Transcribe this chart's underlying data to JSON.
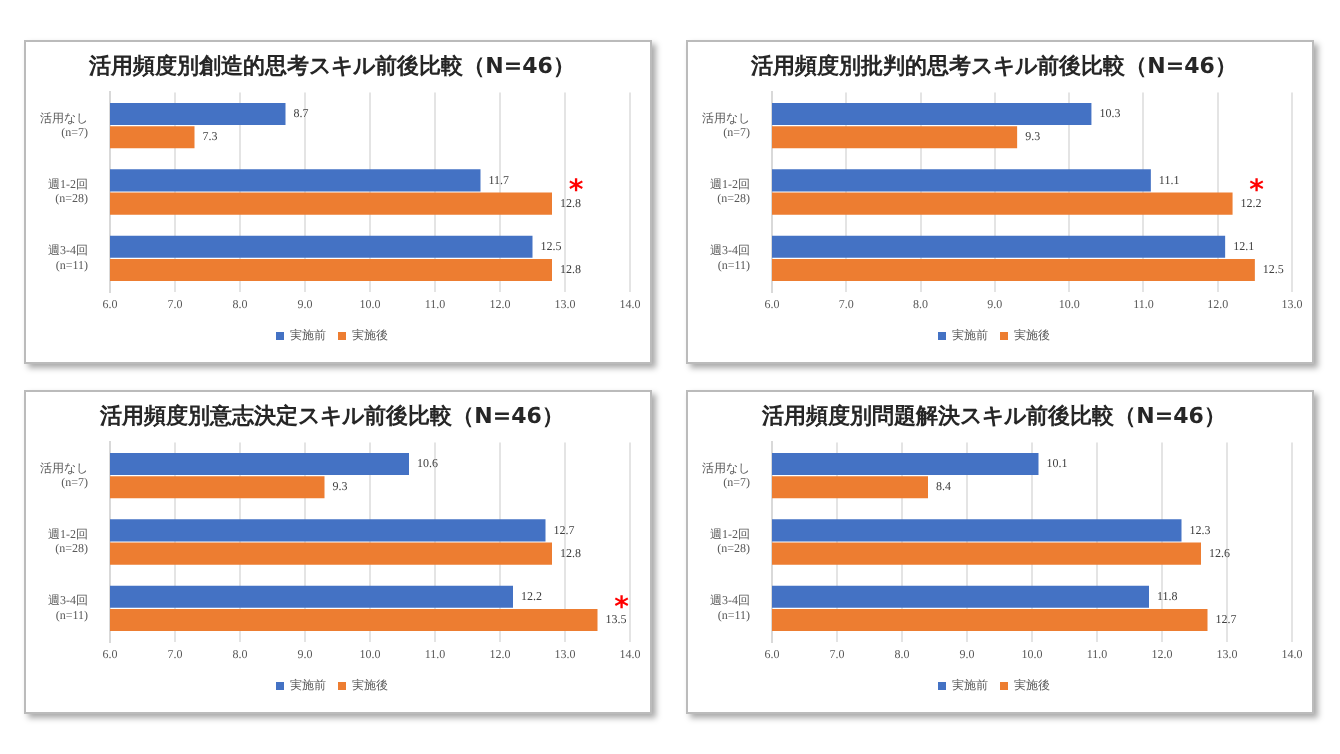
{
  "chart_data": [
    {
      "type": "bar",
      "orientation": "horizontal",
      "title": "活用頻度別創造的思考スキル前後比較（N=46）",
      "categories": [
        "活用なし\n(n=7)",
        "週1-2回\n(n=28)",
        "週3-4回\n(n=11)"
      ],
      "series": [
        {
          "name": "実施前",
          "color": "#4472c4",
          "values": [
            8.7,
            11.7,
            12.5
          ]
        },
        {
          "name": "実施後",
          "color": "#ed7d31",
          "values": [
            7.3,
            12.8,
            12.8
          ]
        }
      ],
      "xlim": [
        6,
        14
      ],
      "xticks": [
        {
          "value": 6,
          "label": "6.0"
        },
        {
          "value": 7,
          "label": "7.0"
        },
        {
          "value": 8,
          "label": "8.0"
        },
        {
          "value": 9,
          "label": "9.0"
        },
        {
          "value": 10,
          "label": "10.0"
        },
        {
          "value": 11,
          "label": "11.0"
        },
        {
          "value": 12,
          "label": "12.0"
        },
        {
          "value": 13,
          "label": "13.0"
        },
        {
          "value": 14,
          "label": "14.0"
        }
      ],
      "data_labels": true,
      "grid": "x",
      "legend": "bottom",
      "annotations": [
        {
          "text": "*",
          "x": 12.8,
          "y": "週1-2回\n(n=28)"
        }
      ]
    },
    {
      "type": "bar",
      "orientation": "horizontal",
      "title": "活用頻度別批判的思考スキル前後比較（N=46）",
      "categories": [
        "活用なし\n(n=7)",
        "週1-2回\n(n=28)",
        "週3-4回\n(n=11)"
      ],
      "series": [
        {
          "name": "実施前",
          "color": "#4472c4",
          "values": [
            10.3,
            11.1,
            12.1
          ]
        },
        {
          "name": "実施後",
          "color": "#ed7d31",
          "values": [
            9.3,
            12.2,
            12.5
          ]
        }
      ],
      "xlim": [
        6,
        13
      ],
      "xticks": [
        {
          "value": 6,
          "label": "6.0"
        },
        {
          "value": 7,
          "label": "7.0"
        },
        {
          "value": 8,
          "label": "8.0"
        },
        {
          "value": 9,
          "label": "9.0"
        },
        {
          "value": 10,
          "label": "10.0"
        },
        {
          "value": 11,
          "label": "11.0"
        },
        {
          "value": 12,
          "label": "12.0"
        },
        {
          "value": 13,
          "label": "13.0"
        }
      ],
      "data_labels": true,
      "grid": "x",
      "legend": "bottom",
      "annotations": [
        {
          "text": "*",
          "x": 12.2,
          "y": "週1-2回\n(n=28)"
        }
      ]
    },
    {
      "type": "bar",
      "orientation": "horizontal",
      "title": "活用頻度別意志決定スキル前後比較（N=46）",
      "categories": [
        "活用なし\n(n=7)",
        "週1-2回\n(n=28)",
        "週3-4回\n(n=11)"
      ],
      "series": [
        {
          "name": "実施前",
          "color": "#4472c4",
          "values": [
            10.6,
            12.7,
            12.2
          ]
        },
        {
          "name": "実施後",
          "color": "#ed7d31",
          "values": [
            9.3,
            12.8,
            13.5
          ]
        }
      ],
      "xlim": [
        6,
        14
      ],
      "xticks": [
        {
          "value": 6,
          "label": "6.0"
        },
        {
          "value": 7,
          "label": "7.0"
        },
        {
          "value": 8,
          "label": "8.0"
        },
        {
          "value": 9,
          "label": "9.0"
        },
        {
          "value": 10,
          "label": "10.0"
        },
        {
          "value": 11,
          "label": "11.0"
        },
        {
          "value": 12,
          "label": "12.0"
        },
        {
          "value": 13,
          "label": "13.0"
        },
        {
          "value": 14,
          "label": "14.0"
        }
      ],
      "data_labels": true,
      "grid": "x",
      "legend": "bottom",
      "annotations": [
        {
          "text": "*",
          "x": 13.5,
          "y": "週3-4回\n(n=11)"
        }
      ]
    },
    {
      "type": "bar",
      "orientation": "horizontal",
      "title": "活用頻度別問題解決スキル前後比較（N=46）",
      "categories": [
        "活用なし\n(n=7)",
        "週1-2回\n(n=28)",
        "週3-4回\n(n=11)"
      ],
      "series": [
        {
          "name": "実施前",
          "color": "#4472c4",
          "values": [
            10.1,
            12.3,
            11.8
          ]
        },
        {
          "name": "実施後",
          "color": "#ed7d31",
          "values": [
            8.4,
            12.6,
            12.7
          ]
        }
      ],
      "xlim": [
        6,
        14
      ],
      "xticks": [
        {
          "value": 6,
          "label": "6.0"
        },
        {
          "value": 7,
          "label": "7.0"
        },
        {
          "value": 8,
          "label": "8.0"
        },
        {
          "value": 9,
          "label": "9.0"
        },
        {
          "value": 10,
          "label": "10.0"
        },
        {
          "value": 11,
          "label": "11.0"
        },
        {
          "value": 12,
          "label": "12.0"
        },
        {
          "value": 13,
          "label": "13.0"
        },
        {
          "value": 14,
          "label": "14.0"
        }
      ],
      "data_labels": true,
      "grid": "x",
      "legend": "bottom"
    }
  ]
}
